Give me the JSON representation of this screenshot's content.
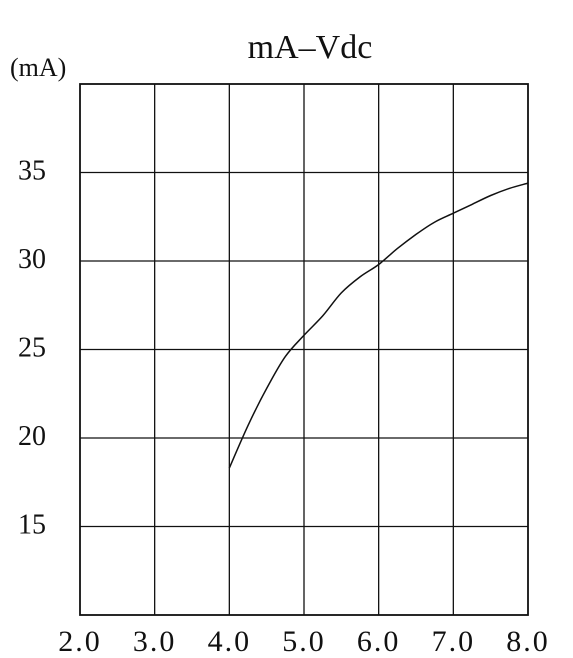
{
  "chart_data": {
    "type": "line",
    "title": "mA–Vdc",
    "ylabel": "(mA)",
    "xlabel": "",
    "x_ticks": [
      "2.0",
      "3.0",
      "4.0",
      "5.0",
      "6.0",
      "7.0",
      "8.0"
    ],
    "y_ticks": [
      "15",
      "20",
      "25",
      "30",
      "35"
    ],
    "xlim": [
      2.0,
      8.0
    ],
    "ylim": [
      10,
      40
    ],
    "grid": true,
    "series": [
      {
        "x": [
          4.0,
          4.25,
          4.5,
          4.75,
          5.0,
          5.25,
          5.5,
          5.75,
          6.0,
          6.25,
          6.5,
          6.75,
          7.0,
          7.25,
          7.5,
          7.75,
          8.0
        ],
        "y": [
          18.3,
          20.7,
          22.8,
          24.6,
          25.8,
          26.9,
          28.2,
          29.1,
          29.8,
          30.7,
          31.5,
          32.2,
          32.7,
          33.2,
          33.7,
          34.1,
          34.4
        ]
      }
    ]
  }
}
